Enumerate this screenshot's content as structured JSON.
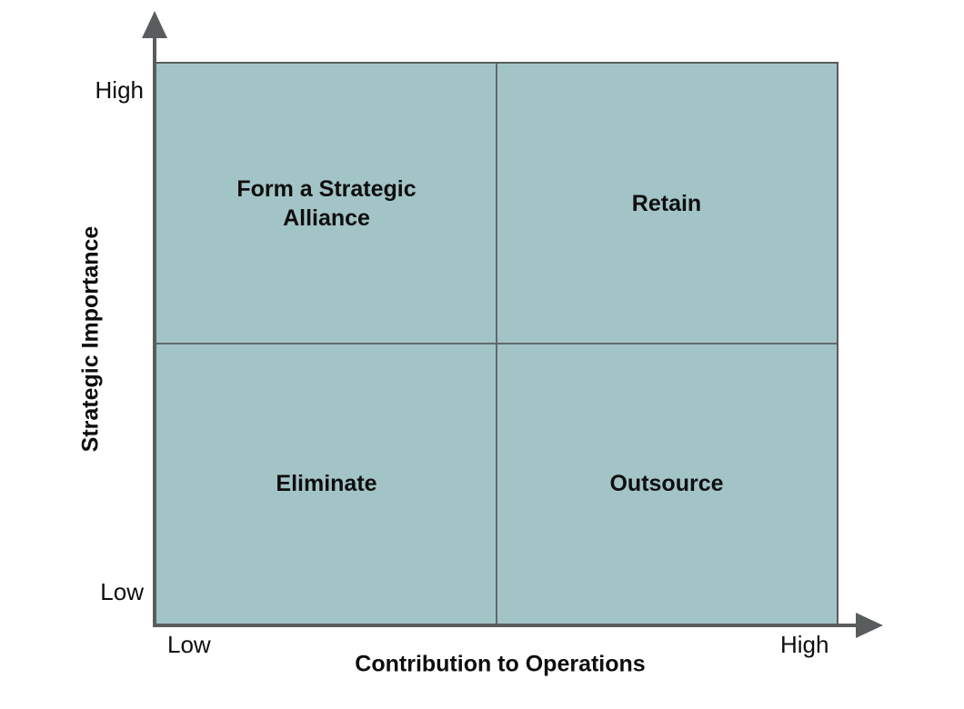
{
  "colors": {
    "quadrant_fill": "#a3c4c7",
    "line_gray": "#595d5e",
    "divider_gray": "#616a6b",
    "text_color": "#0e0e0e"
  },
  "y_axis": {
    "title": "Strategic Importance",
    "high_label": "High",
    "low_label": "Low"
  },
  "x_axis": {
    "title": "Contribution to Operations",
    "low_label": "Low",
    "high_label": "High"
  },
  "quadrants": {
    "top_left": {
      "label": "Form a Strategic Alliance"
    },
    "top_right": {
      "label": "Retain"
    },
    "bottom_left": {
      "label": "Eliminate"
    },
    "bottom_right": {
      "label": "Outsource"
    }
  }
}
